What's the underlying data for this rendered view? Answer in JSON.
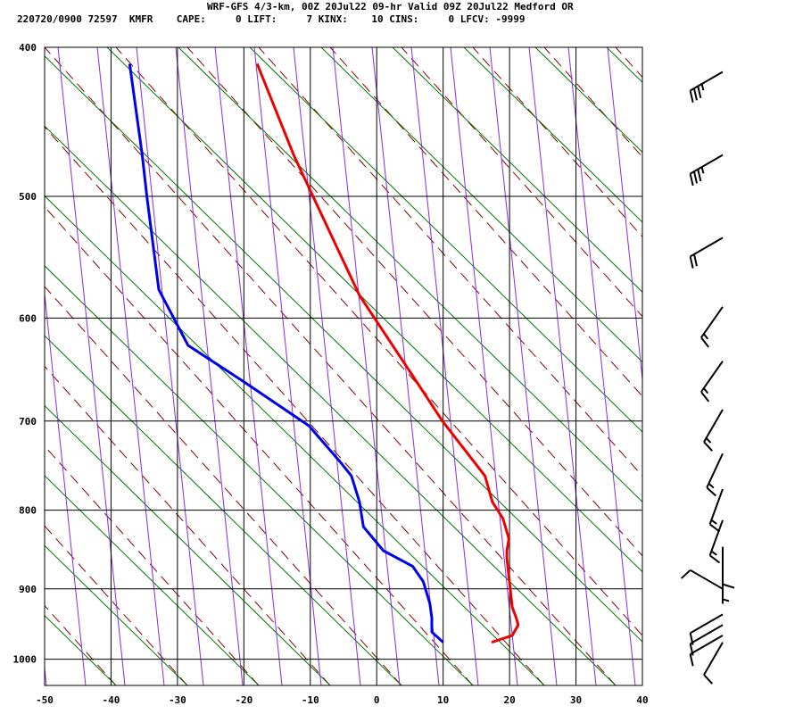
{
  "header": {
    "line1": "WRF-GFS 4/3-km, 00Z 20Jul22 09-hr Valid 09Z 20Jul22 Medford OR",
    "line2": "220720/0900 72597  KMFR    CAPE:     0 LIFT:     7 KINX:    10 CINS:     0 LFCV: -9999"
  },
  "chart_data": {
    "type": "line",
    "subtype": "skew-T log-P sounding",
    "xticks": [
      -50,
      -40,
      -30,
      -20,
      -10,
      0,
      10,
      20,
      30,
      40
    ],
    "yticks": [
      400,
      500,
      600,
      700,
      800,
      900,
      1000
    ],
    "xlim": [
      -50,
      40
    ],
    "ylim": [
      1040,
      400
    ],
    "y_scale": "log",
    "grid": true,
    "background_lines": [
      {
        "kind": "dry adiabats",
        "color": "#8b0000",
        "style": "dashed"
      },
      {
        "kind": "moist adiabats",
        "color": "#007700",
        "style": "solid"
      },
      {
        "kind": "mixing ratio lines",
        "color": "#8a2be2",
        "style": "solid"
      }
    ],
    "series": [
      {
        "kind": "temperature",
        "color": "#ee0000",
        "points": [
          {
            "p": 975,
            "x": 17.3
          },
          {
            "p": 965,
            "x": 20.4
          },
          {
            "p": 950,
            "x": 21.3
          },
          {
            "p": 940,
            "x": 21.0
          },
          {
            "p": 925,
            "x": 20.4
          },
          {
            "p": 900,
            "x": 20.1
          },
          {
            "p": 860,
            "x": 19.6
          },
          {
            "p": 850,
            "x": 19.6
          },
          {
            "p": 835,
            "x": 19.9
          },
          {
            "p": 810,
            "x": 19.0
          },
          {
            "p": 790,
            "x": 17.4
          },
          {
            "p": 760,
            "x": 16.3
          },
          {
            "p": 700,
            "x": 9.9
          },
          {
            "p": 650,
            "x": 5.0
          },
          {
            "p": 580,
            "x": -2.6
          },
          {
            "p": 500,
            "x": -9.6
          },
          {
            "p": 470,
            "x": -12.5
          },
          {
            "p": 410,
            "x": -18.0
          }
        ]
      },
      {
        "kind": "dewpoint",
        "color": "#0000ee",
        "points": [
          {
            "p": 975,
            "x": 10.0
          },
          {
            "p": 960,
            "x": 8.3
          },
          {
            "p": 940,
            "x": 8.3
          },
          {
            "p": 920,
            "x": 8.0
          },
          {
            "p": 890,
            "x": 7.0
          },
          {
            "p": 870,
            "x": 5.4
          },
          {
            "p": 850,
            "x": 1.0
          },
          {
            "p": 820,
            "x": -2.0
          },
          {
            "p": 790,
            "x": -2.6
          },
          {
            "p": 760,
            "x": -3.8
          },
          {
            "p": 745,
            "x": -5.4
          },
          {
            "p": 705,
            "x": -10.2
          },
          {
            "p": 660,
            "x": -20.0
          },
          {
            "p": 625,
            "x": -28.4
          },
          {
            "p": 575,
            "x": -32.8
          },
          {
            "p": 500,
            "x": -34.6
          },
          {
            "p": 470,
            "x": -35.3
          },
          {
            "p": 410,
            "x": -37.2
          }
        ]
      }
    ],
    "wind_barbs": [
      {
        "p": 415,
        "dir": 240,
        "spd": 35
      },
      {
        "p": 470,
        "dir": 240,
        "spd": 35
      },
      {
        "p": 532,
        "dir": 240,
        "spd": 20
      },
      {
        "p": 590,
        "dir": 215,
        "spd": 15
      },
      {
        "p": 640,
        "dir": 215,
        "spd": 15
      },
      {
        "p": 688,
        "dir": 210,
        "spd": 15
      },
      {
        "p": 735,
        "dir": 205,
        "spd": 15
      },
      {
        "p": 775,
        "dir": 200,
        "spd": 15
      },
      {
        "p": 812,
        "dir": 200,
        "spd": 15
      },
      {
        "p": 845,
        "dir": 180,
        "spd": 10
      },
      {
        "p": 870,
        "dir": 180,
        "spd": 5
      },
      {
        "p": 900,
        "dir": 300,
        "spd": 10
      },
      {
        "p": 935,
        "dir": 240,
        "spd": 10
      },
      {
        "p": 950,
        "dir": 240,
        "spd": 10
      },
      {
        "p": 965,
        "dir": 240,
        "spd": 10
      },
      {
        "p": 975,
        "dir": 210,
        "spd": 10
      }
    ]
  }
}
